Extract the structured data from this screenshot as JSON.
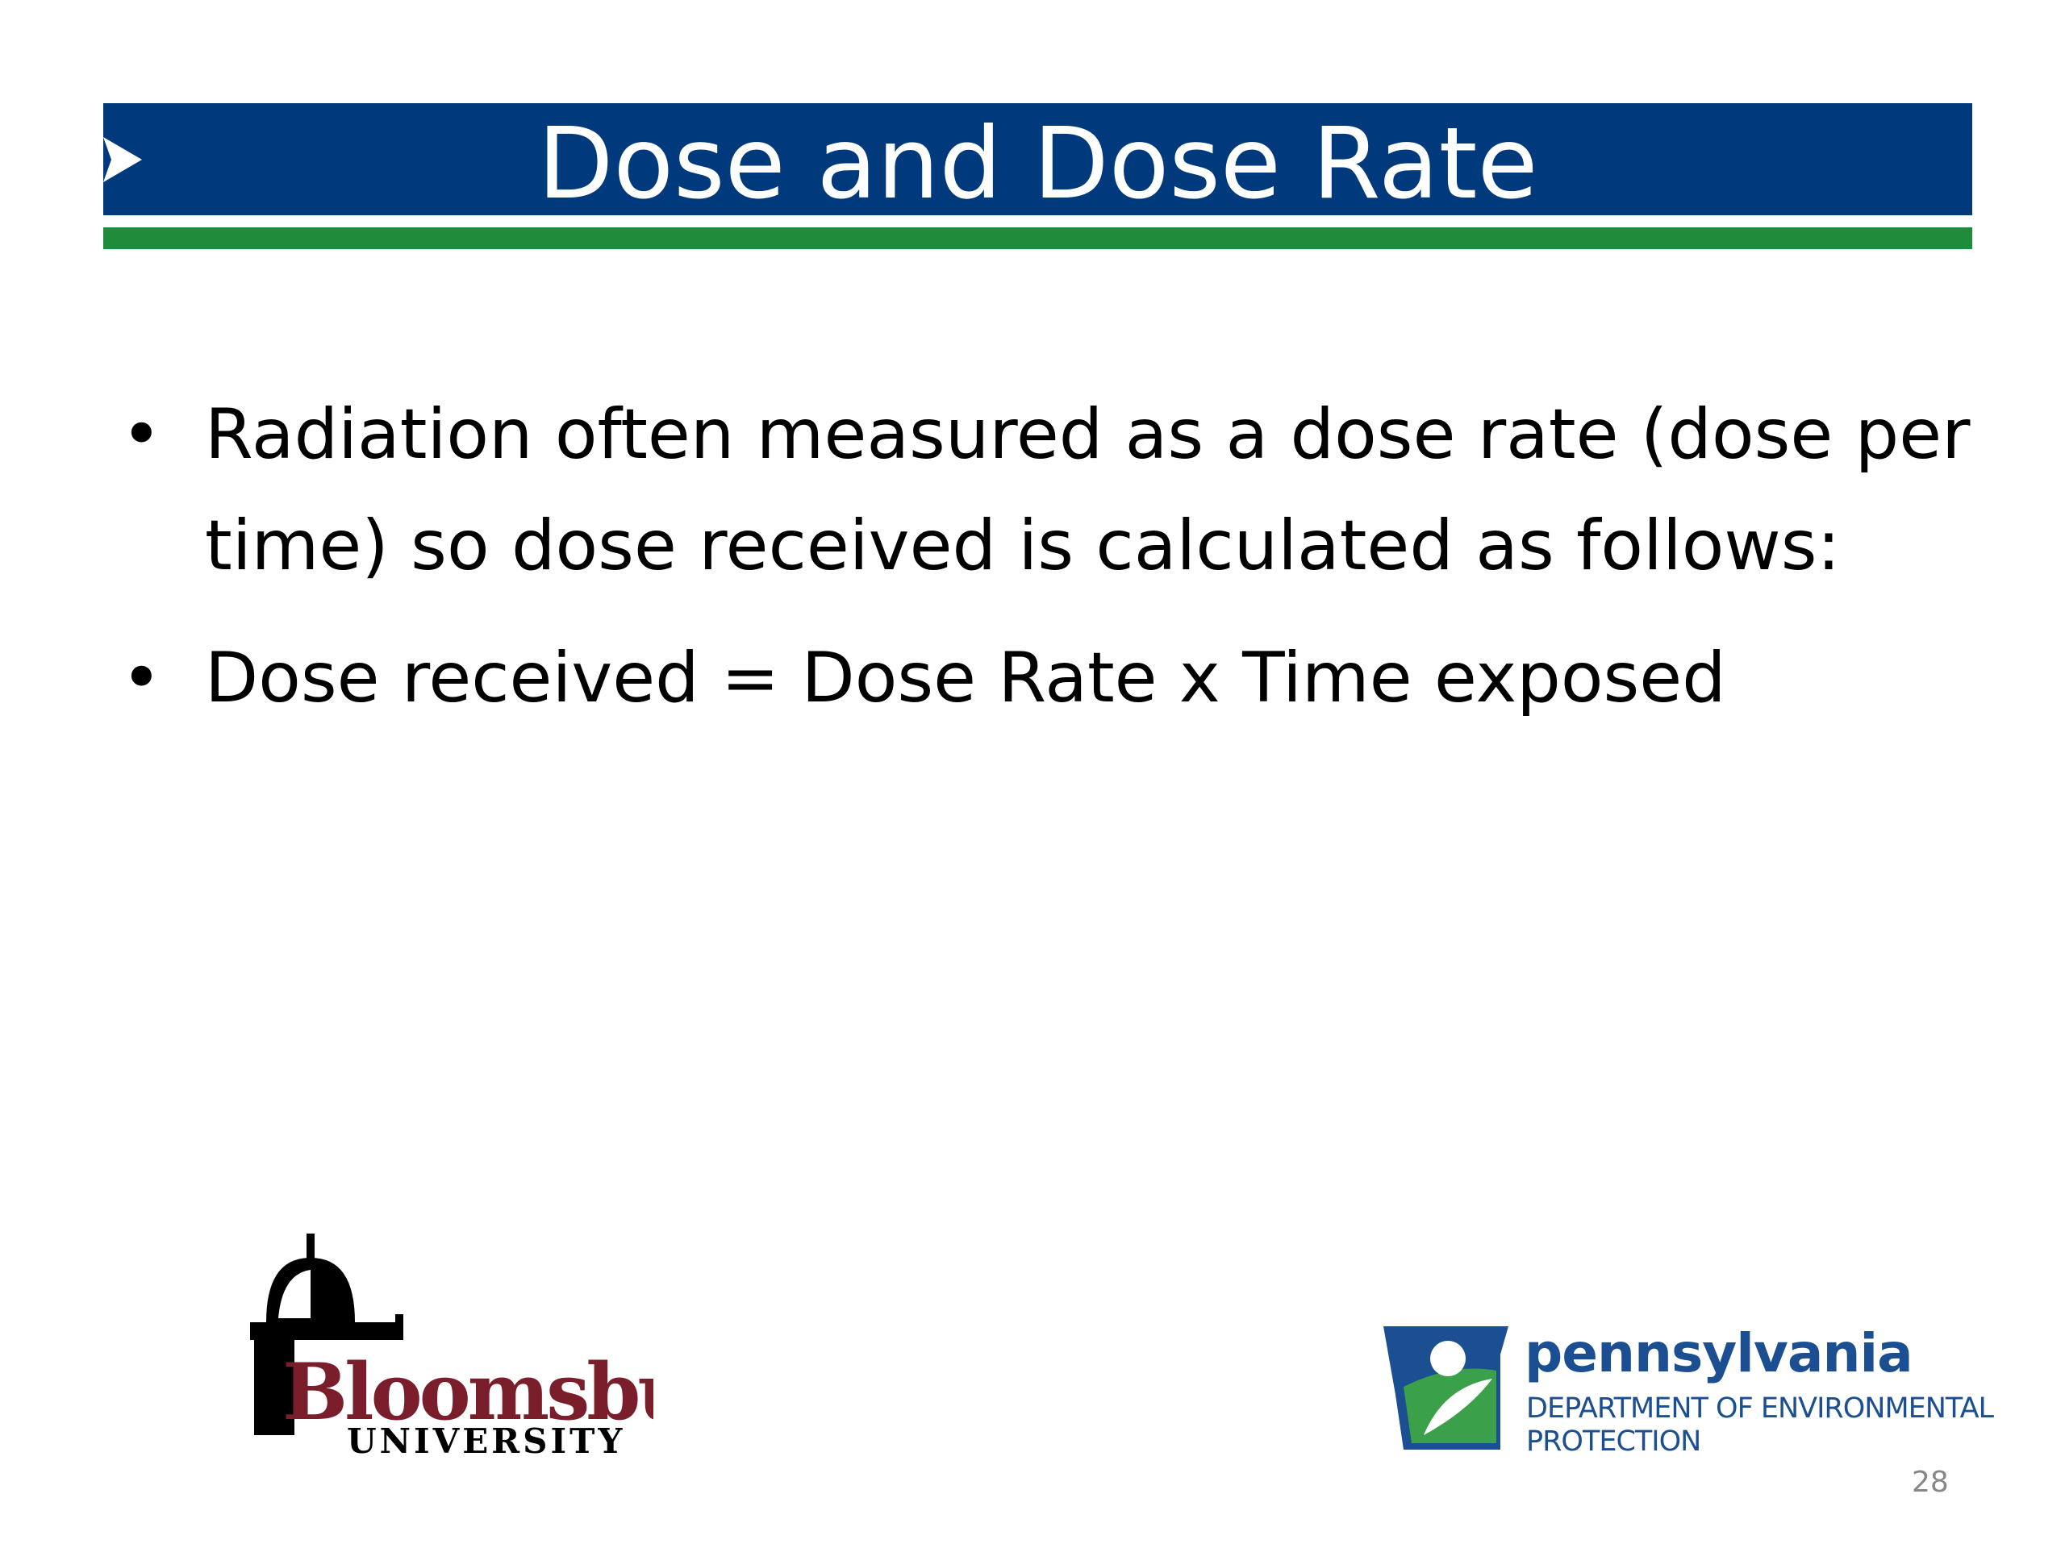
{
  "header": {
    "title": "Dose and Dose Rate"
  },
  "bullets": [
    "Radiation often measured as a dose rate (dose per time) so dose received is calculated as follows:",
    "Dose received = Dose Rate x Time exposed"
  ],
  "logos": {
    "bloomsburg": {
      "name": "Bloomsburg",
      "subtitle": "UNIVERSITY"
    },
    "pennsylvania": {
      "name": "pennsylvania",
      "department": "DEPARTMENT OF ENVIRONMENTAL",
      "line2": "PROTECTION"
    }
  },
  "page_number": 28
}
